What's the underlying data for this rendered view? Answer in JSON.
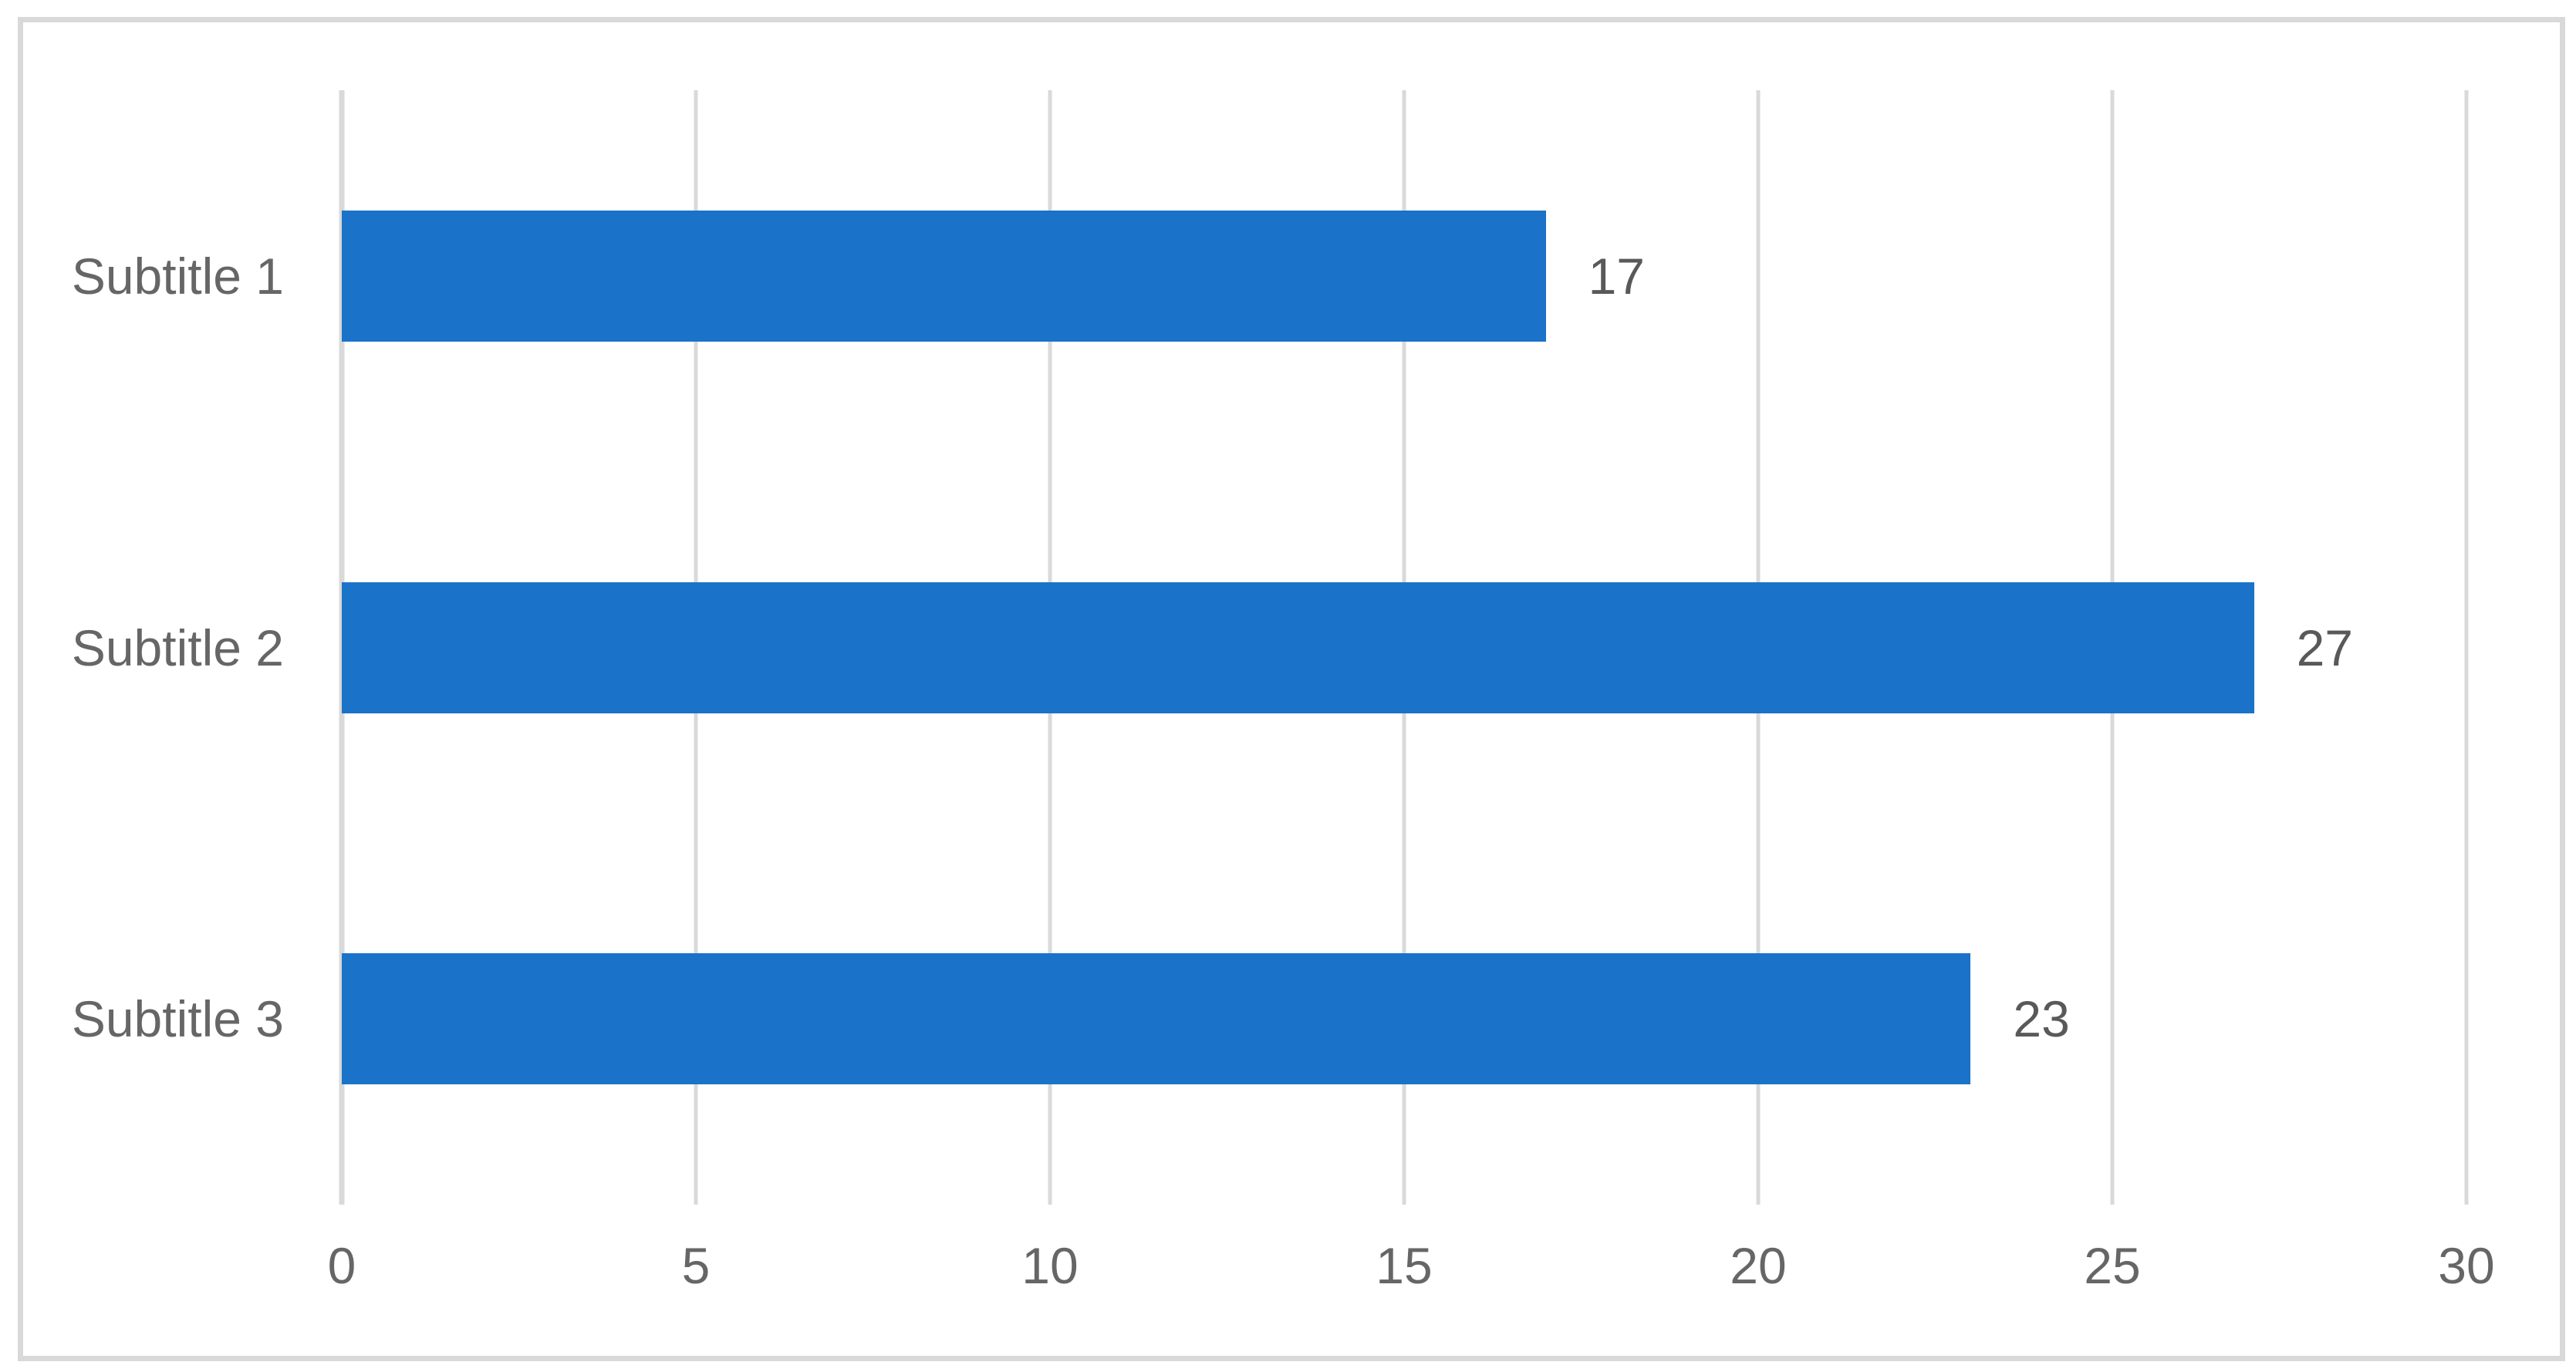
{
  "chart_data": {
    "type": "bar",
    "orientation": "horizontal",
    "title": "",
    "xlabel": "",
    "ylabel": "",
    "categories": [
      "Subtitle 1",
      "Subtitle 2",
      "Subtitle 3"
    ],
    "values": [
      17,
      27,
      23
    ],
    "data_labels": [
      "17",
      "27",
      "23"
    ],
    "xlim": [
      0,
      30
    ],
    "x_ticks": [
      0,
      5,
      10,
      15,
      20,
      25,
      30
    ],
    "x_tick_labels": [
      "0",
      "5",
      "10",
      "15",
      "20",
      "25",
      "30"
    ],
    "grid": "vertical-gridlines-on",
    "legend": "none",
    "colors": {
      "bar": "#1A73C8",
      "gridline": "#D9D9D9",
      "axis_line": "#D9D9D9",
      "frame_border": "#D9D9D9",
      "background": "#FFFFFF",
      "category_label": "#666666",
      "tick_label": "#666666",
      "data_label": "#595959"
    }
  }
}
